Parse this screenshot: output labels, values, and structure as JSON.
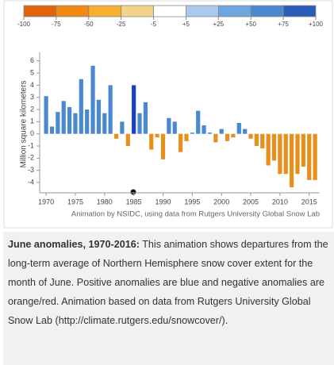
{
  "chart_data": [
    {
      "type": "colorbar",
      "ticks": [
        -100,
        -75,
        -50,
        -25,
        -5,
        {
          "value": 5,
          "label": "+5"
        },
        {
          "value": 25,
          "label": "+25"
        },
        {
          "value": 50,
          "label": "+50"
        },
        {
          "value": 75,
          "label": "+75"
        },
        {
          "value": 100,
          "label": "+100"
        }
      ],
      "colors": [
        "#e0640e",
        "#f08a12",
        "#f5b032",
        "#f2d38a",
        "#ffffff",
        "#a9c9f0",
        "#6fa5e0",
        "#4a88d0",
        "#2b5db8"
      ]
    },
    {
      "type": "bar",
      "y_label": "Million square kilometers",
      "source": "Animation by NSIDC, using data from Rutgers University Global Snow Lab",
      "x": [
        1970,
        1971,
        1972,
        1973,
        1974,
        1975,
        1976,
        1977,
        1978,
        1979,
        1980,
        1981,
        1982,
        1983,
        1984,
        1985,
        1986,
        1987,
        1988,
        1989,
        1990,
        1991,
        1992,
        1993,
        1994,
        1995,
        1996,
        1997,
        1998,
        1999,
        2000,
        2001,
        2002,
        2003,
        2004,
        2005,
        2006,
        2007,
        2008,
        2009,
        2010,
        2011,
        2012,
        2013,
        2014,
        2015,
        2016
      ],
      "values": [
        3.1,
        0.6,
        1.8,
        2.7,
        2.2,
        1.7,
        4.5,
        2.0,
        5.6,
        2.8,
        1.7,
        4.0,
        -0.4,
        1.0,
        -1.0,
        4.0,
        1.7,
        2.6,
        -1.3,
        -0.3,
        -2.1,
        1.3,
        1.0,
        -1.5,
        -0.6,
        0.1,
        1.9,
        0.7,
        0.1,
        -0.7,
        0.4,
        -0.6,
        -0.3,
        0.9,
        0.4,
        -0.4,
        -1.0,
        -1.2,
        -2.6,
        -2.2,
        -3.3,
        -3.3,
        -4.4,
        -3.3,
        -2.7,
        -3.8,
        -3.8
      ],
      "positive_color": "#4a88d0",
      "negative_color": "#e8901c",
      "highlight": {
        "x": 1985,
        "color": "#1b3fbf"
      },
      "xlim": [
        1968.9,
        2016.8
      ],
      "xticks": [
        1970,
        1975,
        1980,
        1985,
        1990,
        1995,
        2000,
        2005,
        2010,
        2015
      ],
      "ylim": [
        -4.85,
        6.7
      ],
      "yticks": [
        -4,
        -3,
        -2,
        -1,
        0,
        1,
        2,
        3,
        4,
        5,
        6
      ],
      "grid": false
    }
  ],
  "caption": {
    "title": "June anomalies, 1970-2016:",
    "text": " This animation shows departures from the long-term average of Northern Hemisphere snow cover extent for the month of June. Positive anomalies are blue and negative anomalies are orange/red. Animation based on data from Rutgers University Global Snow Lab (http://climate.rutgers.edu/snowcover/)."
  }
}
